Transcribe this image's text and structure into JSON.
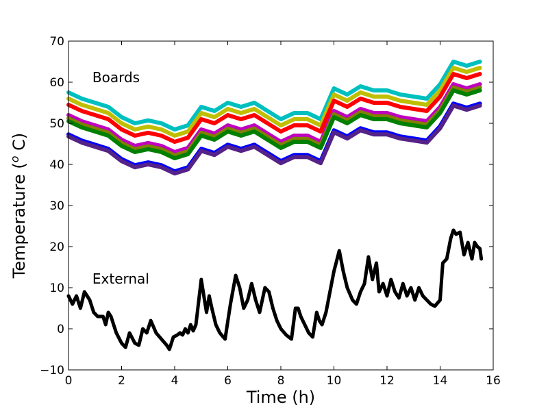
{
  "chart_data": {
    "type": "line",
    "title": "",
    "xlabel": "Time (h)",
    "ylabel_prefix": "Temperature (",
    "ylabel_sup": "o",
    "ylabel_suffix": " C)",
    "xlim": [
      0,
      16
    ],
    "ylim": [
      -10,
      70
    ],
    "xticks": [
      0,
      2,
      4,
      6,
      8,
      10,
      12,
      14,
      16
    ],
    "yticks": [
      -10,
      0,
      10,
      20,
      30,
      40,
      50,
      60,
      70
    ],
    "xtick_labels": [
      "0",
      "2",
      "4",
      "6",
      "8",
      "10",
      "12",
      "14",
      "16"
    ],
    "ytick_labels": [
      "−10",
      "0",
      "10",
      "20",
      "30",
      "40",
      "50",
      "60",
      "70"
    ],
    "grid": false,
    "legend": "none",
    "annotations": [
      {
        "text": "Boards",
        "x": 0.9,
        "y": 60
      },
      {
        "text": "External",
        "x": 0.9,
        "y": 11
      }
    ],
    "board_profile": {
      "x": [
        0,
        0.5,
        1.0,
        1.5,
        2.0,
        2.5,
        3.0,
        3.5,
        4.0,
        4.5,
        5.0,
        5.5,
        6.0,
        6.5,
        7.0,
        7.5,
        8.0,
        8.5,
        9.0,
        9.5,
        10.0,
        10.5,
        11.0,
        11.5,
        12.0,
        12.5,
        13.0,
        13.5,
        14.0,
        14.5,
        15.0,
        15.5
      ],
      "offsets": [
        0,
        -1.5,
        -2.5,
        -3.5,
        -6,
        -7.5,
        -6.8,
        -7.5,
        -9,
        -8,
        -3.5,
        -4.5,
        -2.5,
        -3.5,
        -2.5,
        -4.5,
        -6.5,
        -5,
        -5,
        -6.5,
        1,
        -0.5,
        1.5,
        0.5,
        0.5,
        -0.5,
        -1,
        -1.5,
        2,
        7.5,
        6.5,
        7.5
      ]
    },
    "series": [
      {
        "color": "#00bfbf",
        "base": 57.5
      },
      {
        "color": "#bfbf00",
        "base": 56
      },
      {
        "color": "#ff0000",
        "base": 54.5
      },
      {
        "color": "#bf00bf",
        "base": 52
      },
      {
        "color": "#808000",
        "base": 51.2
      },
      {
        "color": "#008000",
        "base": 50.5
      },
      {
        "color": "#0000ff",
        "base": 47.3
      },
      {
        "color": "#552288",
        "base": 46.8
      },
      {
        "color": "#000000",
        "external": true,
        "x": [
          0,
          0.15,
          0.3,
          0.45,
          0.6,
          0.8,
          0.95,
          1.1,
          1.3,
          1.4,
          1.5,
          1.6,
          1.8,
          2.0,
          2.15,
          2.3,
          2.5,
          2.65,
          2.8,
          2.95,
          3.1,
          3.3,
          3.5,
          3.7,
          3.8,
          3.95,
          4.1,
          4.2,
          4.3,
          4.4,
          4.5,
          4.6,
          4.7,
          4.8,
          5.0,
          5.1,
          5.2,
          5.3,
          5.4,
          5.55,
          5.7,
          5.9,
          6.1,
          6.3,
          6.45,
          6.6,
          6.75,
          6.9,
          7.05,
          7.2,
          7.4,
          7.55,
          7.7,
          7.85,
          8.0,
          8.2,
          8.4,
          8.55,
          8.65,
          8.75,
          8.9,
          9.05,
          9.2,
          9.35,
          9.45,
          9.55,
          9.7,
          9.85,
          10.0,
          10.2,
          10.35,
          10.5,
          10.7,
          10.85,
          11.0,
          11.15,
          11.3,
          11.45,
          11.6,
          11.7,
          11.85,
          12.0,
          12.15,
          12.3,
          12.45,
          12.6,
          12.75,
          12.9,
          13.05,
          13.2,
          13.35,
          13.5,
          13.65,
          13.8,
          14.0,
          14.1,
          14.25,
          14.4,
          14.5,
          14.6,
          14.75,
          14.9,
          15.05,
          15.2,
          15.3,
          15.4,
          15.5,
          15.55
        ],
        "y": [
          8,
          6,
          8,
          5,
          9,
          7,
          4,
          3,
          3,
          1,
          4,
          3,
          -1,
          -3.5,
          -4.5,
          -1,
          -3.5,
          -4,
          0,
          -1,
          2,
          -1,
          -2.5,
          -4,
          -5,
          -2,
          -1.5,
          -1,
          -1.5,
          0,
          -1,
          1,
          -0.5,
          1,
          12,
          8,
          4,
          8,
          5,
          1,
          -1,
          -2.5,
          6,
          13,
          10,
          5,
          7,
          11,
          7,
          4,
          10,
          9,
          5,
          2,
          0,
          -1.5,
          -2.5,
          5,
          5,
          3,
          1,
          -1,
          -2,
          4,
          2,
          1,
          4,
          9,
          14,
          19,
          14,
          10,
          7,
          6,
          9,
          11,
          17.5,
          12,
          16,
          9,
          11,
          8,
          12,
          9,
          7.5,
          11,
          8,
          10,
          7,
          10,
          8,
          7,
          6,
          5.5,
          7,
          16,
          17,
          22,
          24,
          23,
          23.5,
          18,
          21,
          17,
          21,
          20,
          19.5,
          17
        ]
      }
    ]
  }
}
